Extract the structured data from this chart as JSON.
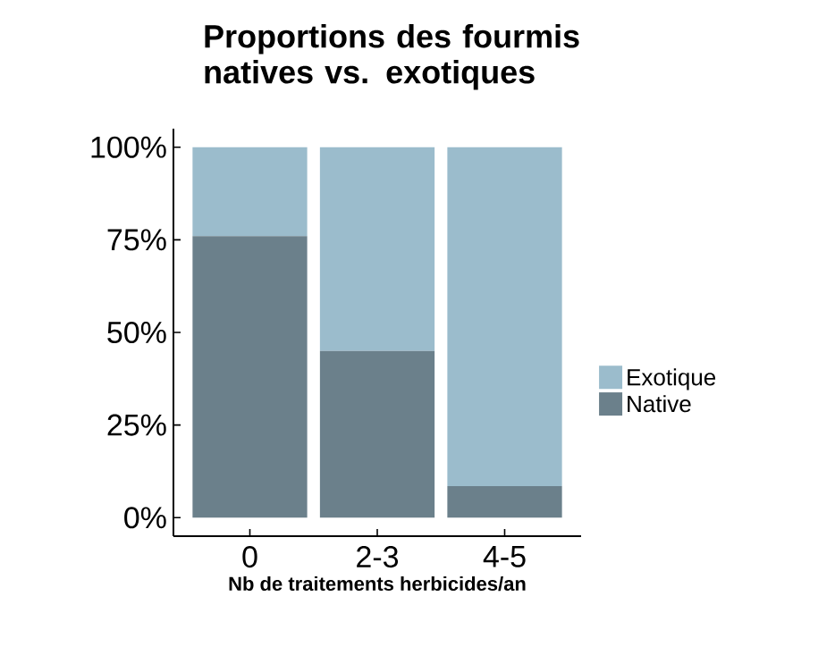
{
  "chart_data": {
    "type": "bar",
    "title": "Proportions des fourmis natives vs. exotiques",
    "xlabel": "Nb de traitements herbicides/an",
    "categories": [
      "0",
      "2-3",
      "4-5"
    ],
    "stacked": true,
    "legend": "right",
    "grid": false,
    "ylim": [
      -5,
      105
    ],
    "yticks": [
      {
        "value": 0,
        "label": "0%"
      },
      {
        "value": 25,
        "label": "25%"
      },
      {
        "value": 50,
        "label": "50%"
      },
      {
        "value": 75,
        "label": "75%"
      },
      {
        "value": 100,
        "label": "100%"
      }
    ],
    "series": [
      {
        "name": "Native",
        "color": "#6b808b",
        "values": [
          76,
          45,
          8.5
        ]
      },
      {
        "name": "Exotique",
        "color": "#9bbccc",
        "values": [
          24,
          55,
          91.5
        ]
      }
    ]
  }
}
